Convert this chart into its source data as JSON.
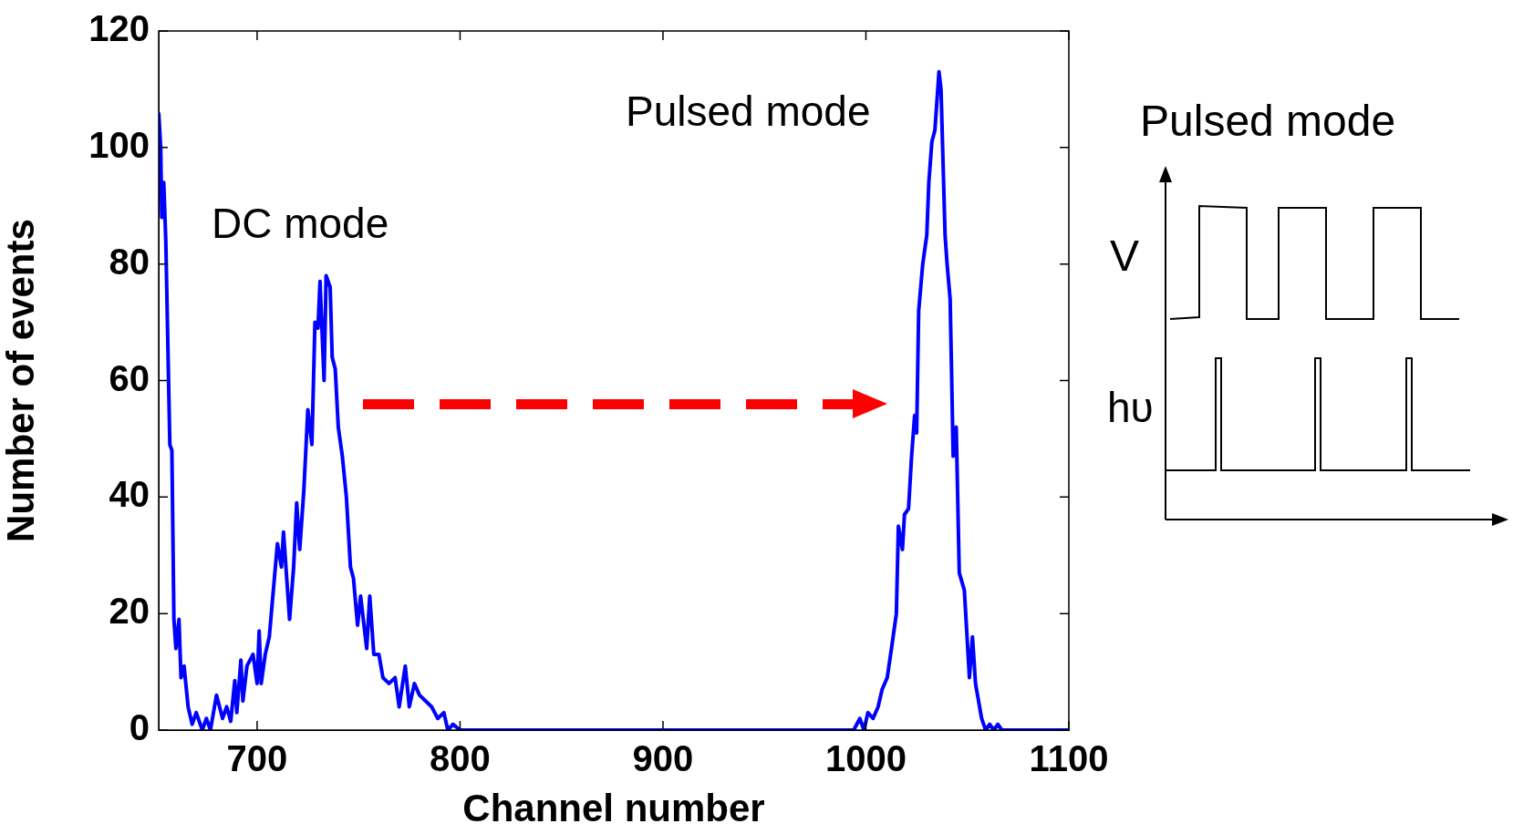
{
  "chart_data": {
    "type": "line",
    "xlabel": "Channel number",
    "ylabel": "Number of events",
    "x": [
      651.5,
      652.5,
      653,
      654,
      655,
      657,
      658,
      659,
      660,
      661.5,
      662.5,
      664,
      666,
      668,
      670,
      673,
      675,
      677,
      680,
      683,
      685,
      687,
      689,
      690,
      692,
      693,
      695,
      698,
      700,
      701,
      702,
      704,
      706,
      708.5,
      710,
      712,
      713,
      716,
      718,
      719.5,
      721,
      723,
      725,
      727,
      728.5,
      730,
      731,
      733,
      734,
      736,
      737,
      738.5,
      740,
      742,
      744,
      746,
      747.5,
      749.5,
      751,
      754,
      755.5,
      757.5,
      760,
      762,
      765,
      768,
      770,
      773,
      775,
      777.5,
      780,
      783,
      786,
      789,
      792,
      794,
      796.5,
      800,
      994,
      997,
      999,
      1001,
      1003.5,
      1006,
      1008,
      1010.5,
      1013,
      1015,
      1016,
      1018,
      1019,
      1021,
      1022.5,
      1024,
      1025,
      1026,
      1028,
      1030,
      1031,
      1032.5,
      1034,
      1036,
      1037,
      1039,
      1040,
      1041.5,
      1043,
      1044.5,
      1046,
      1048.5,
      1051,
      1052.5,
      1054,
      1057,
      1059,
      1061,
      1063,
      1065,
      1067,
      1100
    ],
    "series": [
      {
        "color": "#0000ff",
        "values": [
          106,
          100,
          88,
          94,
          84,
          49,
          48,
          19,
          14,
          19,
          9,
          11,
          4,
          1,
          3,
          0,
          2,
          0,
          6,
          2,
          4,
          1.5,
          8.5,
          3,
          12,
          5,
          11,
          13,
          8,
          17,
          8,
          13,
          16,
          26,
          32,
          28,
          34,
          19,
          28,
          39,
          31,
          41,
          55,
          49,
          70,
          69,
          77,
          60,
          78,
          76,
          64,
          62,
          52,
          47,
          40,
          28,
          26,
          18,
          23,
          14,
          23,
          13,
          13,
          9,
          8,
          9,
          4,
          11,
          4,
          8,
          6,
          5,
          4,
          2,
          3,
          0,
          1,
          0,
          0,
          2,
          0,
          3,
          2,
          4,
          7,
          9,
          15,
          20,
          35,
          31,
          37,
          38,
          47,
          54,
          51,
          72,
          80,
          85,
          94,
          101,
          103,
          113,
          110,
          85,
          80,
          74,
          47,
          52,
          27,
          24,
          9,
          16,
          8,
          2,
          0,
          1,
          0,
          1,
          0,
          0
        ]
      }
    ],
    "xlim": [
      651.5,
      1100
    ],
    "xticks": [
      700,
      800,
      900,
      1000,
      1100
    ],
    "ylim": [
      0,
      120
    ],
    "yticks": [
      0,
      20,
      40,
      60,
      80,
      100,
      120
    ],
    "marker": "none",
    "line_style": "solid",
    "annotations": [
      "DC mode",
      "Pulsed mode",
      "Pulsed mode",
      "V",
      "hυ"
    ]
  }
}
